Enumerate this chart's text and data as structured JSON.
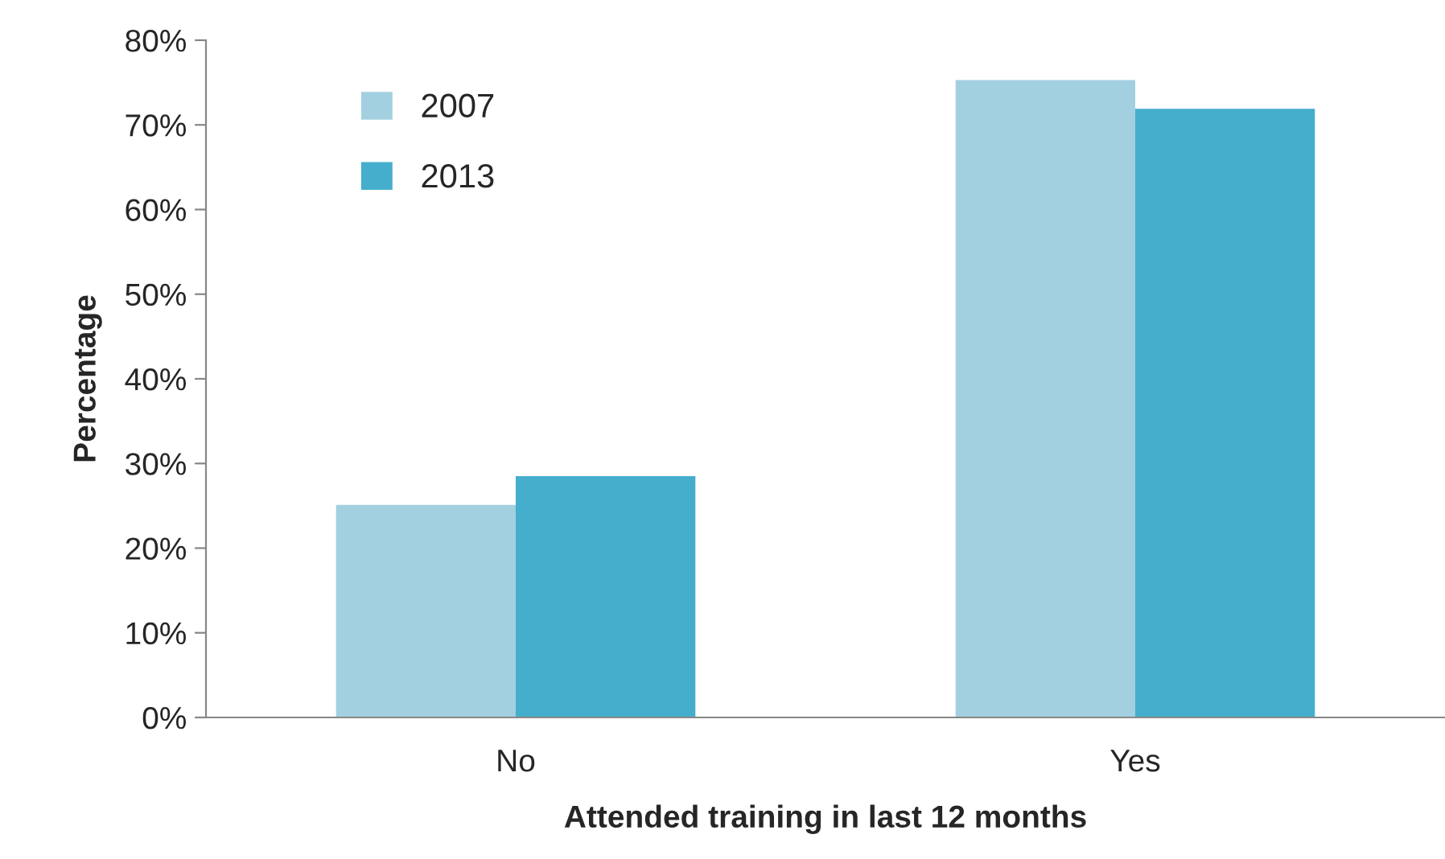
{
  "chart_data": {
    "type": "bar",
    "xlabel": "Attended training in last 12 months",
    "ylabel": "Percentage",
    "categories": [
      "No",
      "Yes"
    ],
    "series": [
      {
        "name": "2007",
        "color": "#a3d0e0",
        "values": [
          25.1,
          75.3
        ]
      },
      {
        "name": "2013",
        "color": "#44aecc",
        "values": [
          28.5,
          71.9
        ]
      }
    ],
    "ylim": [
      0,
      80
    ],
    "yticks": [
      {
        "value": 0,
        "label": "0%"
      },
      {
        "value": 10,
        "label": "10%"
      },
      {
        "value": 20,
        "label": "20%"
      },
      {
        "value": 30,
        "label": "30%"
      },
      {
        "value": 40,
        "label": "40%"
      },
      {
        "value": 50,
        "label": "50%"
      },
      {
        "value": 60,
        "label": "60%"
      },
      {
        "value": 70,
        "label": "70%"
      },
      {
        "value": 80,
        "label": "80%"
      }
    ],
    "grid": false,
    "legend": "top left"
  }
}
